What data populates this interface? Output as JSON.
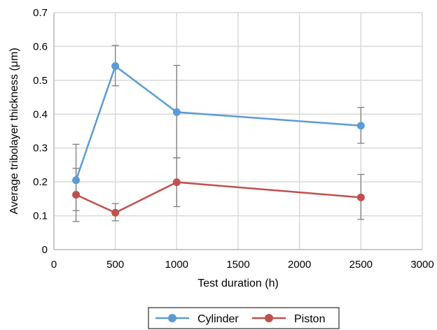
{
  "chart_data": {
    "type": "line",
    "title": "",
    "xlabel": "Test duration (h)",
    "ylabel": "Average tribolayer thickness (μm)",
    "xlim": [
      0,
      3000
    ],
    "ylim": [
      0,
      0.7
    ],
    "xticks": [
      0,
      500,
      1000,
      1500,
      2000,
      2500,
      3000
    ],
    "yticks": [
      0,
      0.1,
      0.2,
      0.3,
      0.4,
      0.5,
      0.6,
      0.7
    ],
    "xtick_labels": [
      "0",
      "500",
      "1000",
      "1500",
      "2000",
      "2500",
      "3000"
    ],
    "ytick_labels": [
      "0",
      "0.1",
      "0.2",
      "0.3",
      "0.4",
      "0.5",
      "0.6",
      "0.7"
    ],
    "grid": true,
    "legend_position": "bottom",
    "series": [
      {
        "name": "Cylinder",
        "color": "#5b9bd5",
        "x": [
          180,
          500,
          1000,
          2500
        ],
        "y": [
          0.205,
          0.542,
          0.406,
          0.366
        ],
        "err_low": [
          0.115,
          0.484,
          0.271,
          0.314
        ],
        "err_high": [
          0.311,
          0.603,
          0.544,
          0.42
        ]
      },
      {
        "name": "Piston",
        "color": "#c0504d",
        "x": [
          180,
          500,
          1000,
          2500
        ],
        "y": [
          0.162,
          0.109,
          0.199,
          0.154
        ],
        "err_low": [
          0.083,
          0.085,
          0.127,
          0.089
        ],
        "err_high": [
          0.24,
          0.136,
          0.271,
          0.222
        ]
      }
    ]
  }
}
